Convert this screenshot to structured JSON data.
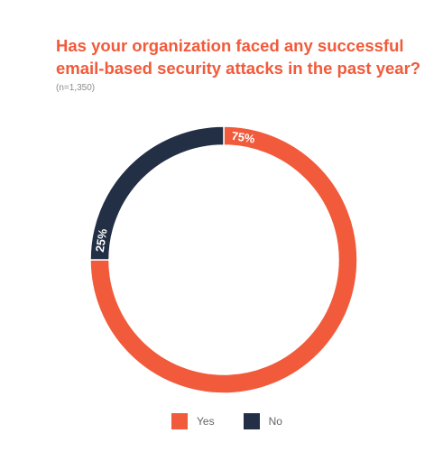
{
  "chart_data": {
    "type": "pie",
    "variant": "donut",
    "title": "Has your organization faced any successful email-based security attacks in the past year?",
    "subtitle": "(n=1,350)",
    "categories": [
      "Yes",
      "No"
    ],
    "values": [
      75,
      25
    ],
    "labels": [
      "75%",
      "25%"
    ],
    "colors": [
      "#f15a3a",
      "#232f45"
    ],
    "legend": {
      "position": "bottom",
      "entries": [
        "Yes",
        "No"
      ]
    }
  }
}
